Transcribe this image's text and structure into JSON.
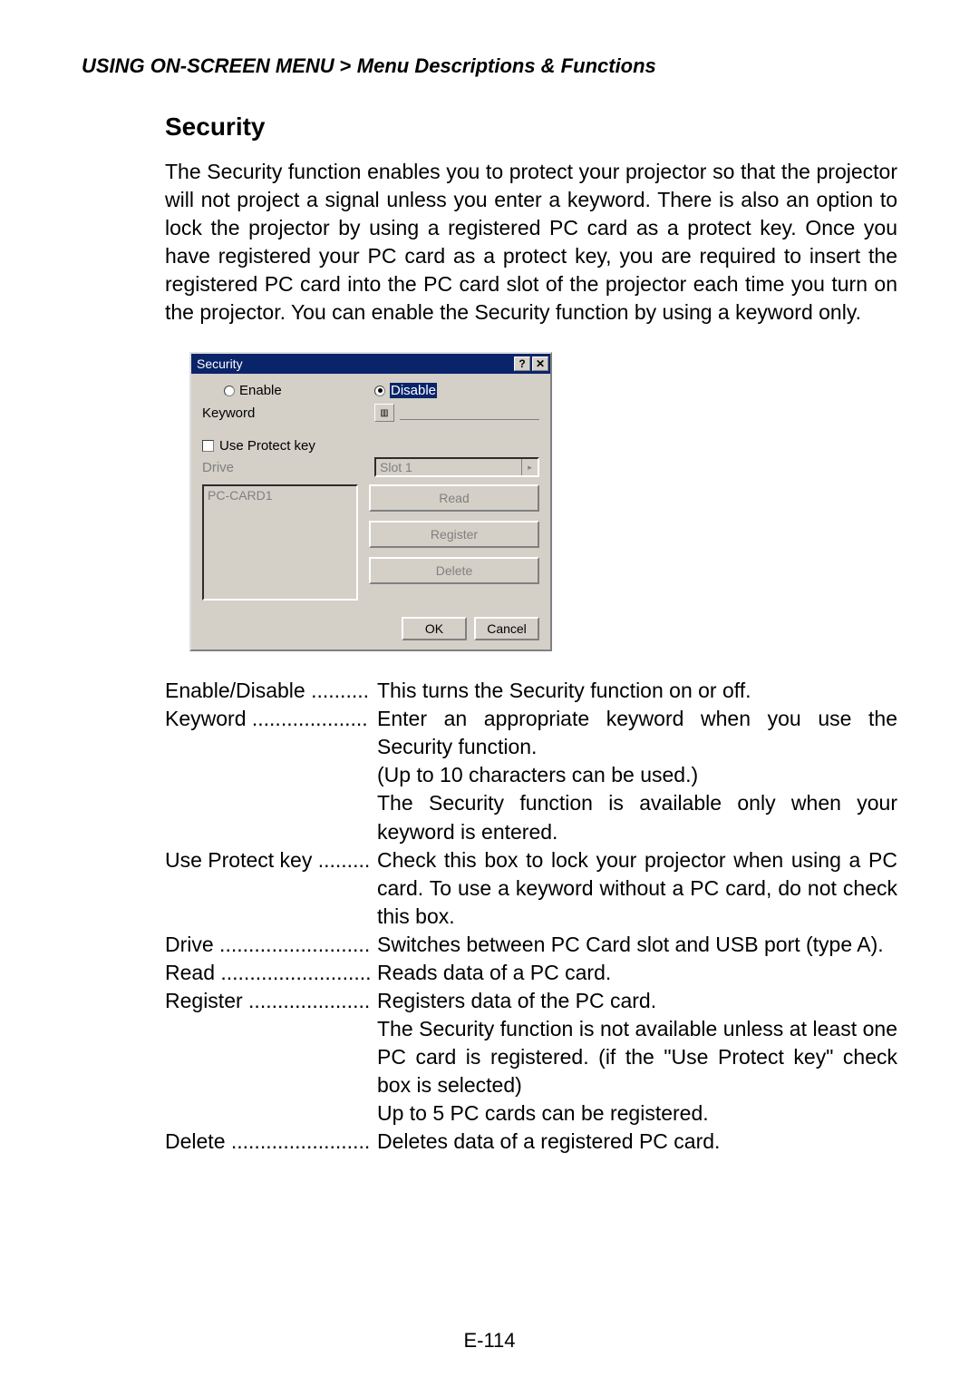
{
  "breadcrumb": {
    "prefix": "USING ON-SCREEN MENU",
    "gt": " > ",
    "suffix": "Menu Descriptions & Functions"
  },
  "section_title": "Security",
  "intro": "The Security function enables you to protect your projector so that the projector will not project a signal unless you enter a keyword. There is also an option to lock the projector by using a registered PC card as a protect key. Once you have registered your PC card as a protect key, you are required to insert the registered PC card into the PC card slot of the projector each time you turn on the projector. You can enable the Security function by using a keyword only.",
  "dialog": {
    "title": "Security",
    "help_btn": "?",
    "close_btn": "✕",
    "enable_label": "Enable",
    "disable_label": "Disable",
    "keyword_label": "Keyword",
    "use_protect_label": "Use Protect key",
    "drive_label": "Drive",
    "drive_value": "Slot 1",
    "list_item": "PC-CARD1",
    "read_btn": "Read",
    "register_btn": "Register",
    "delete_btn": "Delete",
    "ok_btn": "OK",
    "cancel_btn": "Cancel"
  },
  "defs": [
    {
      "term": "Enable/Disable",
      "dots": " ..........",
      "lines": [
        "This turns the Security function on or off."
      ]
    },
    {
      "term": "Keyword",
      "dots": " ....................",
      "lines": [
        "Enter an appropriate keyword when you use the Security function.",
        "(Up to 10 characters can be used.)",
        "The Security function is available only when your keyword is entered."
      ]
    },
    {
      "term": "Use Protect key",
      "dots": " .........",
      "lines": [
        "Check this box to lock your projector when using a PC card. To use a keyword without a PC card, do not check this box."
      ]
    },
    {
      "term": "Drive",
      "dots": " ..........................",
      "lines": [
        "Switches between PC Card slot and USB port (type A)."
      ]
    },
    {
      "term": "Read",
      "dots": " ..........................",
      "lines": [
        "Reads data of a PC card."
      ]
    },
    {
      "term": "Register",
      "dots": " .....................",
      "lines": [
        "Registers data of the PC card.",
        "The Security function is not available unless at least one PC card is registered. (if the \"Use Protect key\" check box is selected)",
        "Up to 5 PC cards can be registered."
      ]
    },
    {
      "term": "Delete",
      "dots": " ........................",
      "lines": [
        "Deletes data of a registered PC card."
      ]
    }
  ],
  "page_num": "E-114"
}
